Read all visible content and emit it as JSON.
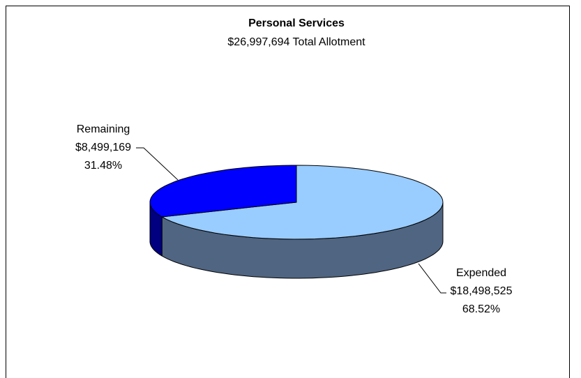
{
  "chart_data": {
    "type": "pie3d",
    "title": "Personal Services",
    "subtitle": "$26,997,694 Total Allotment",
    "categories": [
      "Remaining",
      "Expended"
    ],
    "values": [
      8499169,
      18498525
    ],
    "value_labels": [
      "$8,499,169",
      "$18,498,525"
    ],
    "percent_labels": [
      "31.48%",
      "68.52%"
    ],
    "colors": [
      "#0000ff",
      "#99ccff"
    ],
    "side_colors": [
      "#000080",
      "#4f6582"
    ]
  }
}
